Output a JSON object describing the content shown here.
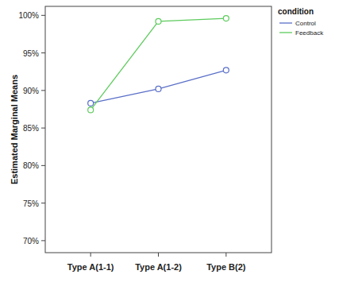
{
  "chart_data": {
    "type": "line",
    "y_label": "Estimated Marginal Means",
    "legend_title": "condition",
    "categories": [
      "Type A(1-1)",
      "Type A(1-2)",
      "Type B(2)"
    ],
    "series": [
      {
        "name": "Control",
        "color": "#5a6fc8",
        "values": [
          88.3,
          90.2,
          92.7
        ]
      },
      {
        "name": "Feedback",
        "color": "#5ecb5e",
        "values": [
          87.4,
          99.2,
          99.6
        ]
      }
    ],
    "ylim": [
      68.4,
      101.2
    ],
    "yticks": [
      {
        "value": 70,
        "label": "70%"
      },
      {
        "value": 75,
        "label": "75%"
      },
      {
        "value": 80,
        "label": "80%"
      },
      {
        "value": 85,
        "label": "85%"
      },
      {
        "value": 90,
        "label": "90%"
      },
      {
        "value": 95,
        "label": "95%"
      },
      {
        "value": 100,
        "label": "100%"
      }
    ],
    "grid": false,
    "legend": "top-right",
    "marker": "circle-open",
    "line_style": "solid"
  }
}
